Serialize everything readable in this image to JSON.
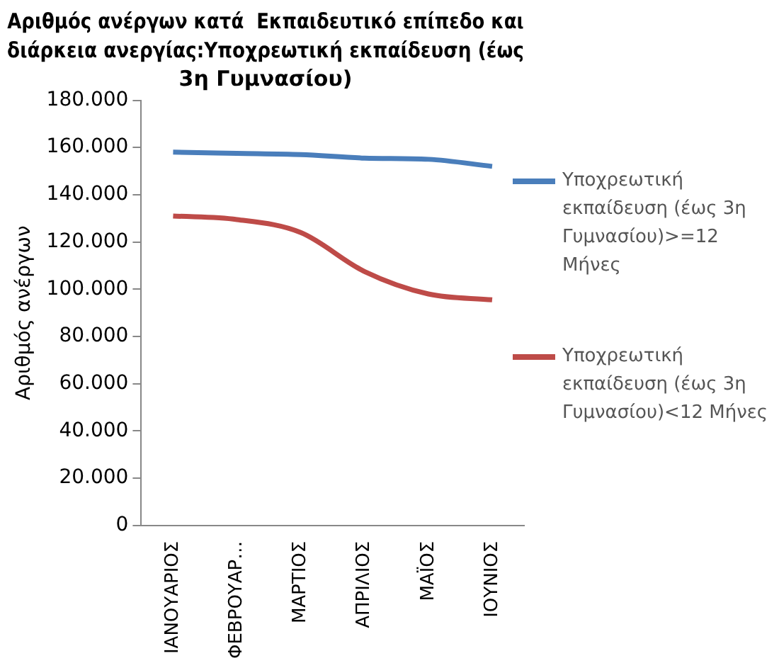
{
  "chart_data": {
    "type": "line",
    "title": "Αριθμός ανέργων κατά  Εκπαιδευτικό επίπεδο και διάρκεια ανεργίας:Υποχρεωτική εκπαίδευση (έως 3η Γυμνασίου)",
    "ylabel": "Αριθμός ανέργων",
    "categories": [
      "ΙΑΝΟΥΑΡΙΟΣ",
      "ΦΕΒΡΟΥΑΡ…",
      "ΜΑΡΤΙΟΣ",
      "ΑΠΡΙΛΙΟΣ",
      "ΜΑΪΟΣ",
      "ΙΟΥΝΙΟΣ"
    ],
    "series": [
      {
        "name": "Υποχρεωτική εκπαίδευση (έως 3η Γυμνασίου)>=12 Μήνες",
        "color": "#4a7ebb",
        "values": [
          158000,
          157500,
          157000,
          155500,
          155000,
          152000
        ]
      },
      {
        "name": "Υποχρεωτική εκπαίδευση (έως 3η Γυμνασίου)<12 Μήνες",
        "color": "#be4b48",
        "values": [
          131000,
          129500,
          124000,
          107500,
          98000,
          95500
        ]
      }
    ],
    "ylim": [
      0,
      180000
    ],
    "yticks": [
      {
        "value": 0,
        "label": "0"
      },
      {
        "value": 20000,
        "label": "20.000"
      },
      {
        "value": 40000,
        "label": "40.000"
      },
      {
        "value": 60000,
        "label": "60.000"
      },
      {
        "value": 80000,
        "label": "80.000"
      },
      {
        "value": 100000,
        "label": "100.000"
      },
      {
        "value": 120000,
        "label": "120.000"
      },
      {
        "value": 140000,
        "label": "140.000"
      },
      {
        "value": 160000,
        "label": "160.000"
      },
      {
        "value": 180000,
        "label": "180.000"
      }
    ],
    "grid": false,
    "legend": "right",
    "marker": "none",
    "line_style": "solid"
  }
}
